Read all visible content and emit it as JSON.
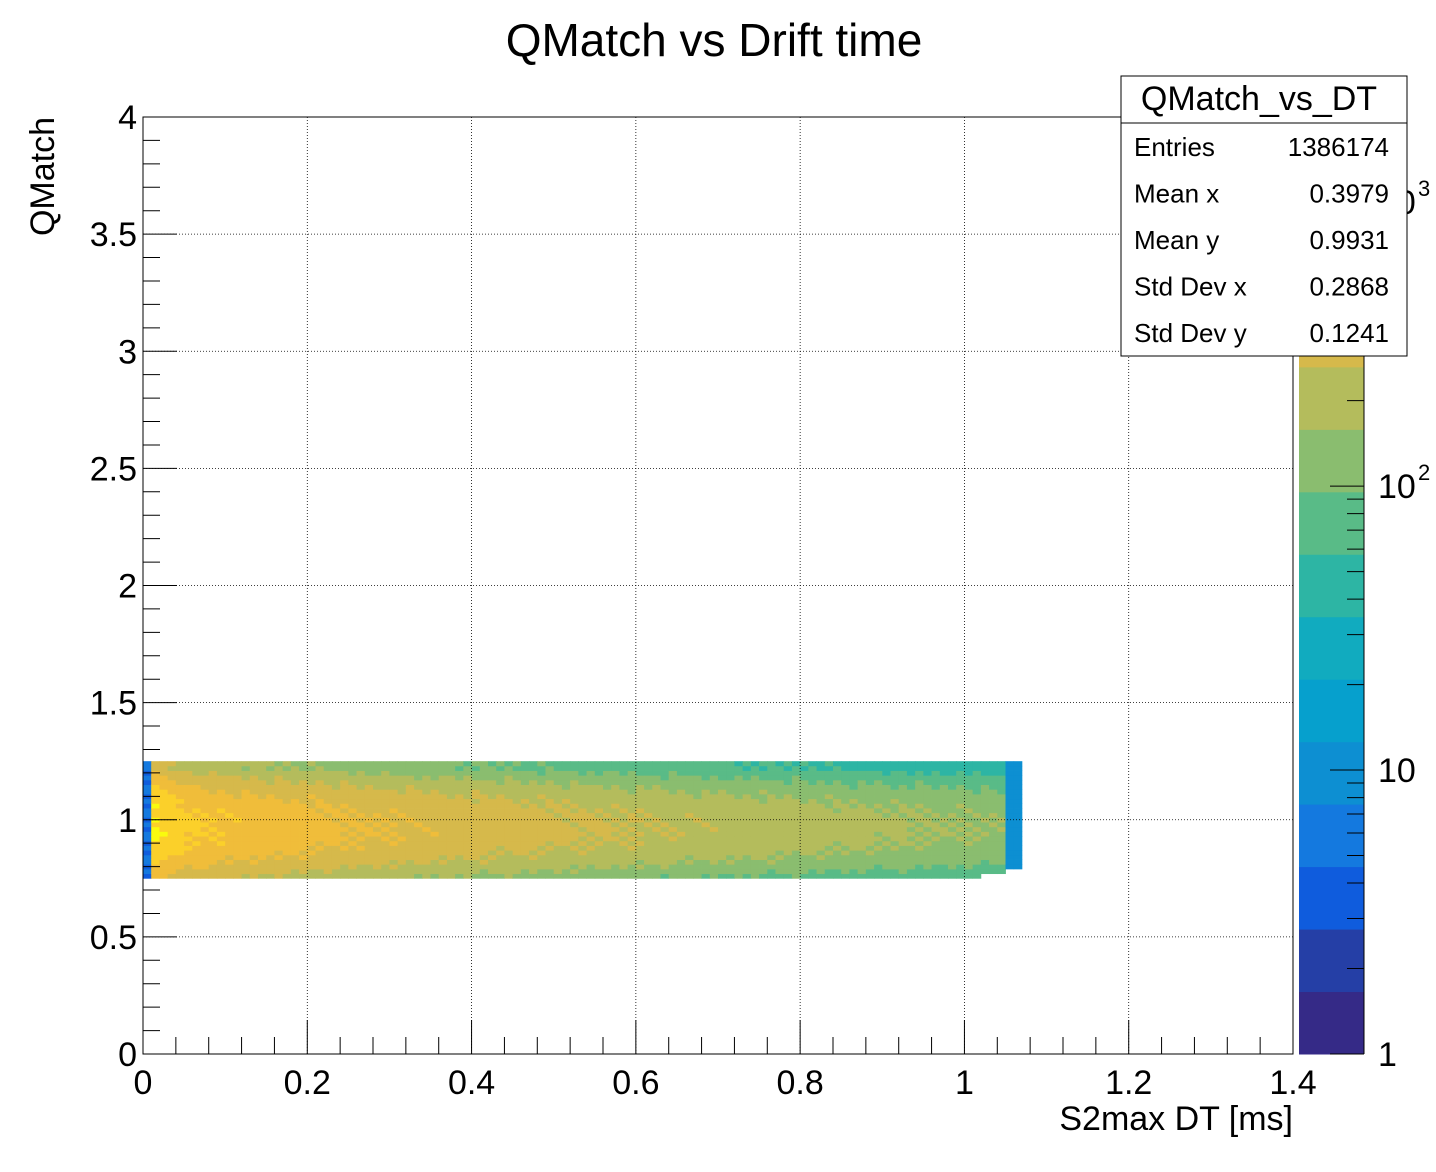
{
  "chart_data": {
    "type": "heatmap",
    "title": "QMatch vs Drift time",
    "xlabel": "S2max DT [ms]",
    "ylabel": "QMatch",
    "xlim": [
      0,
      1.4
    ],
    "ylim": [
      0,
      4
    ],
    "x_ticks": [
      "0",
      "0.2",
      "0.4",
      "0.6",
      "0.8",
      "1",
      "1.2",
      "1.4"
    ],
    "y_ticks": [
      "0",
      "0.5",
      "1",
      "1.5",
      "2",
      "2.5",
      "3",
      "3.5",
      "4"
    ],
    "grid": true,
    "z_scale": "log",
    "z_ticks": [
      "1",
      "10",
      "10",
      "10"
    ],
    "z_tick_exponents": [
      "",
      "",
      "2",
      "3"
    ],
    "palette": [
      "#352a87",
      "#253fa6",
      "#0f5cdd",
      "#1479df",
      "#0d8fd2",
      "#06a0cd",
      "#11abbf",
      "#2db5a4",
      "#59bb87",
      "#8abd6f",
      "#b4bc5c",
      "#d6b94b",
      "#f0bd3a",
      "#fbd02a",
      "#f9fb0e"
    ],
    "occupied_region": {
      "x_range": [
        0.0,
        1.07
      ],
      "y_range": [
        0.75,
        1.25
      ],
      "peak": {
        "x": 0.02,
        "y": 0.97
      }
    },
    "stats_box": {
      "name": "QMatch_vs_DT",
      "rows": [
        {
          "label": "Entries",
          "value": "1386174"
        },
        {
          "label": "Mean x",
          "value": "0.3979"
        },
        {
          "label": "Mean y",
          "value": "0.9931"
        },
        {
          "label": "Std Dev x",
          "value": "0.2868"
        },
        {
          "label": "Std Dev y",
          "value": "0.1241"
        }
      ]
    }
  }
}
